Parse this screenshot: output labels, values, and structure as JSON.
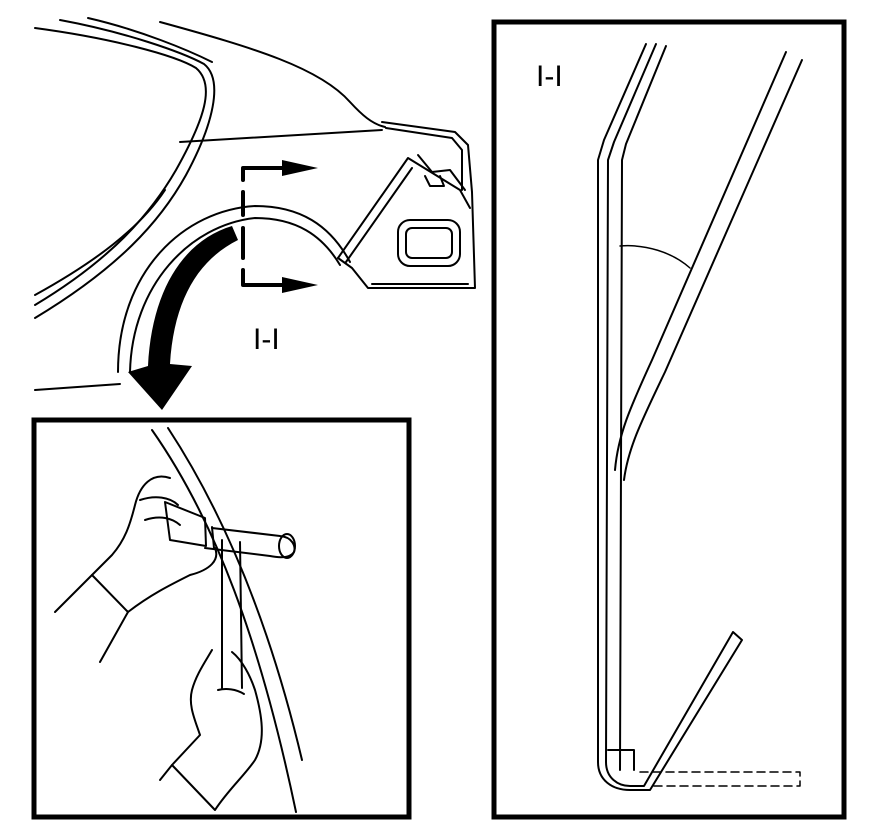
{
  "section_label_overview": "I-I",
  "section_label_detail": "I-I"
}
